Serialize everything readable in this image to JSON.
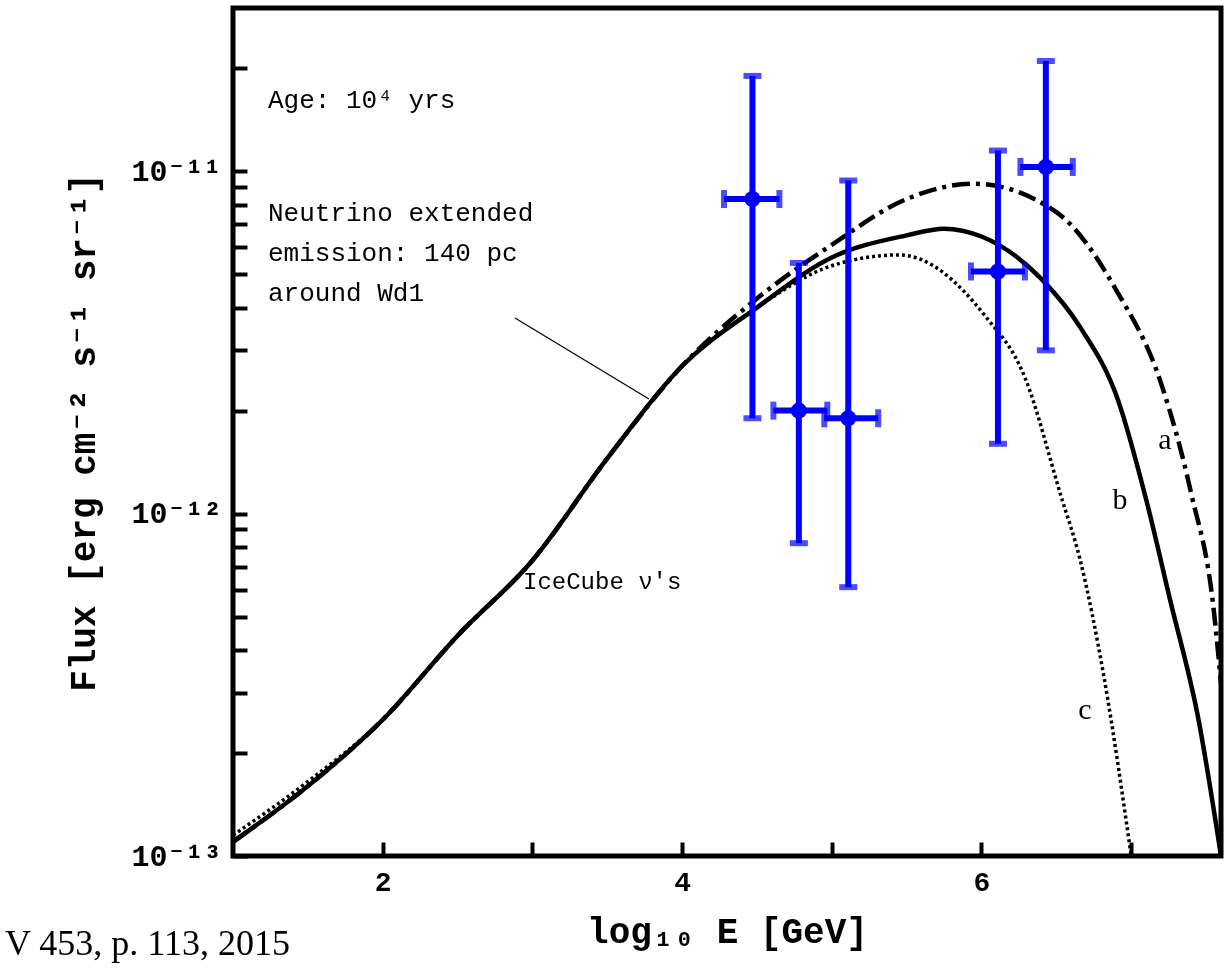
{
  "chart_data": {
    "type": "line",
    "xlabel": "log₁₀ E [GeV]",
    "ylabel": "Flux [erg cm⁻² s⁻¹ sr⁻¹]",
    "log": "y",
    "xlim": [
      1,
      7.6
    ],
    "xticks": [
      2,
      {
        "value": 3,
        "label": null
      },
      4,
      {
        "value": 5,
        "label": null
      },
      6,
      {
        "value": 7,
        "label": null
      }
    ],
    "ylim": [
      1e-13,
      3e-11
    ],
    "yticks": [
      {
        "value": 1e-13,
        "label": "10⁻¹³"
      },
      {
        "value": 2e-13,
        "label": null
      },
      {
        "value": 3e-13,
        "label": null
      },
      {
        "value": 4e-13,
        "label": null
      },
      {
        "value": 5e-13,
        "label": null
      },
      {
        "value": 6e-13,
        "label": null
      },
      {
        "value": 7e-13,
        "label": null
      },
      {
        "value": 8e-13,
        "label": null
      },
      {
        "value": 9e-13,
        "label": null
      },
      {
        "value": 1e-12,
        "label": "10⁻¹²"
      },
      {
        "value": 2e-12,
        "label": null
      },
      {
        "value": 3e-12,
        "label": null
      },
      {
        "value": 4e-12,
        "label": null
      },
      {
        "value": 5e-12,
        "label": null
      },
      {
        "value": 6e-12,
        "label": null
      },
      {
        "value": 7e-12,
        "label": null
      },
      {
        "value": 8e-12,
        "label": null
      },
      {
        "value": 9e-12,
        "label": null
      },
      {
        "value": 1e-11,
        "label": "10⁻¹¹"
      },
      {
        "value": 2e-11,
        "label": null
      }
    ],
    "annotations": [
      "Age: 10⁴ yrs",
      "Neutrino extended emission: 140 pc around Wd1",
      "V 453, p. 113, 2015",
      "IceCube ν′s"
    ],
    "series": [
      {
        "type": "line",
        "name": "a",
        "color": "#000000",
        "line_style": "dashed",
        "x": [
          1,
          1.5,
          2,
          2.5,
          3,
          3.5,
          4,
          4.5,
          5,
          5.5,
          5.95,
          6.5,
          6.9,
          7.2,
          7.4,
          7.55,
          7.6
        ],
        "values": [
          1.1e-13,
          1.6e-13,
          2.5e-13,
          4.4e-13,
          7.3e-13,
          1.45e-12,
          2.7e-12,
          4.25e-12,
          6.1e-12,
          8.3e-12,
          9.2e-12,
          7.6e-12,
          4.5e-12,
          2.4e-12,
          1.15e-12,
          5.3e-13,
          3.2e-13
        ]
      },
      {
        "type": "line",
        "name": "b",
        "color": "#000000",
        "line_style": "solid",
        "x": [
          1,
          1.5,
          2,
          2.5,
          3,
          3.5,
          4,
          4.5,
          5,
          5.5,
          5.75,
          6,
          6.4,
          6.66,
          6.91,
          7.1,
          7.26,
          7.45,
          7.6
        ],
        "values": [
          1.1e-13,
          1.6e-13,
          2.5e-13,
          4.4e-13,
          7.3e-13,
          1.45e-12,
          2.7e-12,
          4e-12,
          5.6e-12,
          6.5e-12,
          6.8e-12,
          6.45e-12,
          4.85e-12,
          3.5e-12,
          2.16e-12,
          1.1e-12,
          5.6e-13,
          2.5e-13,
          1e-13
        ]
      },
      {
        "type": "line",
        "name": "c",
        "color": "#000000",
        "line_style": "dotted",
        "x": [
          1,
          1.5,
          2,
          2.5,
          3,
          3.5,
          4,
          4.5,
          5,
          5.45,
          6.02,
          6.29,
          6.53,
          6.66,
          6.82,
          7.0
        ],
        "values": [
          1.15e-13,
          1.65e-13,
          2.5e-13,
          4.4e-13,
          7.3e-13,
          1.45e-12,
          2.7e-12,
          4e-12,
          5.3e-12,
          5.7e-12,
          3.8e-12,
          2.5e-12,
          1.13e-12,
          7.3e-13,
          3.3e-13,
          1e-13
        ]
      },
      {
        "type": "scatter",
        "color": "#0000ff",
        "marker": "circle",
        "x": [
          4.47,
          4.78,
          5.11,
          6.11,
          6.43
        ],
        "values": [
          8.3e-12,
          2e-12,
          1.9e-12,
          5.1e-12,
          1.03e-11
        ],
        "errors": [
          [
            1.9e-12,
            1.9e-11
          ],
          [
            8.2e-13,
            5.4e-12
          ],
          [
            6.1e-13,
            9.4e-12
          ],
          [
            1.6e-12,
            1.15e-11
          ],
          [
            3e-12,
            2.1e-11
          ]
        ],
        "xerrors": [
          [
            4.28,
            4.65
          ],
          [
            4.61,
            4.97
          ],
          [
            4.95,
            5.31
          ],
          [
            5.93,
            6.29
          ],
          [
            6.26,
            6.61
          ]
        ]
      }
    ]
  }
}
